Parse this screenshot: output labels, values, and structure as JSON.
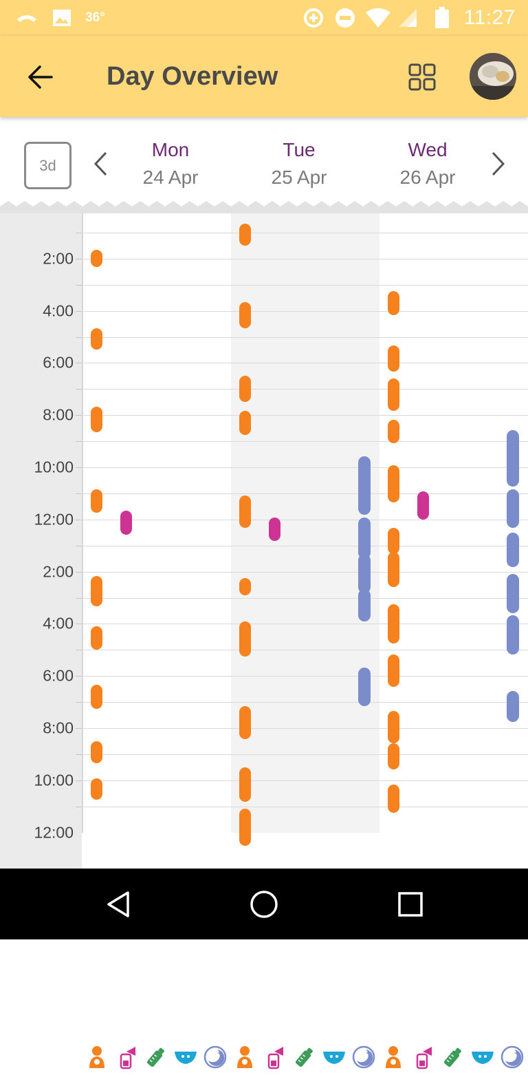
{
  "status_bar": {
    "temperature": "36°",
    "time": "11:27"
  },
  "toolbar": {
    "title": "Day Overview"
  },
  "date_header": {
    "range_label": "3d",
    "days": [
      {
        "name": "Mon",
        "date": "24 Apr"
      },
      {
        "name": "Tue",
        "date": "25 Apr"
      },
      {
        "name": "Wed",
        "date": "26 Apr"
      }
    ]
  },
  "timeline": {
    "time_labels": [
      "2:00",
      "4:00",
      "6:00",
      "8:00",
      "10:00",
      "12:00",
      "2:00",
      "4:00",
      "6:00",
      "8:00",
      "10:00",
      "12:00"
    ],
    "colors": {
      "feeding": "#f5821f",
      "pumping": "#cc3393",
      "sleep": "#7b8ccb"
    },
    "events": [
      {
        "day": 0,
        "type": "feeding",
        "start": "1:40",
        "end": "2:20"
      },
      {
        "day": 0,
        "type": "feeding",
        "start": "4:40",
        "end": "5:30"
      },
      {
        "day": 0,
        "type": "feeding",
        "start": "7:40",
        "end": "8:40"
      },
      {
        "day": 0,
        "type": "feeding",
        "start": "10:50",
        "end": "11:45"
      },
      {
        "day": 0,
        "type": "pumping",
        "start": "11:40",
        "end": "12:35"
      },
      {
        "day": 0,
        "type": "feeding",
        "start": "14:10",
        "end": "15:20"
      },
      {
        "day": 0,
        "type": "feeding",
        "start": "16:05",
        "end": "17:00"
      },
      {
        "day": 0,
        "type": "feeding",
        "start": "18:20",
        "end": "19:15"
      },
      {
        "day": 0,
        "type": "feeding",
        "start": "20:30",
        "end": "21:20"
      },
      {
        "day": 0,
        "type": "feeding",
        "start": "21:55",
        "end": "22:45"
      },
      {
        "day": 1,
        "type": "feeding",
        "start": "0:40",
        "end": "1:30"
      },
      {
        "day": 1,
        "type": "feeding",
        "start": "3:40",
        "end": "4:40"
      },
      {
        "day": 1,
        "type": "feeding",
        "start": "6:30",
        "end": "7:30"
      },
      {
        "day": 1,
        "type": "feeding",
        "start": "7:50",
        "end": "8:45"
      },
      {
        "day": 1,
        "type": "feeding",
        "start": "11:05",
        "end": "12:20"
      },
      {
        "day": 1,
        "type": "pumping",
        "start": "11:55",
        "end": "12:50"
      },
      {
        "day": 1,
        "type": "feeding",
        "start": "14:15",
        "end": "14:55"
      },
      {
        "day": 1,
        "type": "feeding",
        "start": "15:55",
        "end": "17:15"
      },
      {
        "day": 1,
        "type": "feeding",
        "start": "19:10",
        "end": "20:25"
      },
      {
        "day": 1,
        "type": "feeding",
        "start": "21:30",
        "end": "22:50"
      },
      {
        "day": 1,
        "type": "feeding",
        "start": "23:05",
        "end": "0:30"
      },
      {
        "day": 1,
        "type": "sleep",
        "start": "9:35",
        "end": "11:50"
      },
      {
        "day": 1,
        "type": "sleep",
        "start": "11:55",
        "end": "13:30"
      },
      {
        "day": 1,
        "type": "sleep",
        "start": "13:20",
        "end": "14:50"
      },
      {
        "day": 1,
        "type": "sleep",
        "start": "14:40",
        "end": "15:55"
      },
      {
        "day": 1,
        "type": "sleep",
        "start": "17:40",
        "end": "19:10"
      },
      {
        "day": 2,
        "type": "feeding",
        "start": "3:15",
        "end": "4:10"
      },
      {
        "day": 2,
        "type": "feeding",
        "start": "5:20",
        "end": "6:20"
      },
      {
        "day": 2,
        "type": "feeding",
        "start": "6:35",
        "end": "7:50"
      },
      {
        "day": 2,
        "type": "feeding",
        "start": "8:10",
        "end": "9:05"
      },
      {
        "day": 2,
        "type": "feeding",
        "start": "9:55",
        "end": "11:20"
      },
      {
        "day": 2,
        "type": "pumping",
        "start": "10:55",
        "end": "12:00"
      },
      {
        "day": 2,
        "type": "feeding",
        "start": "12:20",
        "end": "13:20"
      },
      {
        "day": 2,
        "type": "feeding",
        "start": "13:15",
        "end": "14:35"
      },
      {
        "day": 2,
        "type": "feeding",
        "start": "15:15",
        "end": "16:45"
      },
      {
        "day": 2,
        "type": "feeding",
        "start": "17:10",
        "end": "18:25"
      },
      {
        "day": 2,
        "type": "feeding",
        "start": "19:20",
        "end": "20:35"
      },
      {
        "day": 2,
        "type": "feeding",
        "start": "20:35",
        "end": "21:35"
      },
      {
        "day": 2,
        "type": "feeding",
        "start": "22:10",
        "end": "23:15"
      },
      {
        "day": 2,
        "type": "sleep",
        "start": "8:35",
        "end": "10:45"
      },
      {
        "day": 2,
        "type": "sleep",
        "start": "10:50",
        "end": "12:20"
      },
      {
        "day": 2,
        "type": "sleep",
        "start": "12:30",
        "end": "13:50"
      },
      {
        "day": 2,
        "type": "sleep",
        "start": "14:05",
        "end": "15:35"
      },
      {
        "day": 2,
        "type": "sleep",
        "start": "15:40",
        "end": "17:10"
      },
      {
        "day": 2,
        "type": "sleep",
        "start": "18:35",
        "end": "19:45"
      }
    ]
  },
  "legend_icons": [
    "nursing-icon",
    "breast-pump-icon",
    "bottle-icon",
    "diaper-icon",
    "sleep-moon-icon"
  ]
}
